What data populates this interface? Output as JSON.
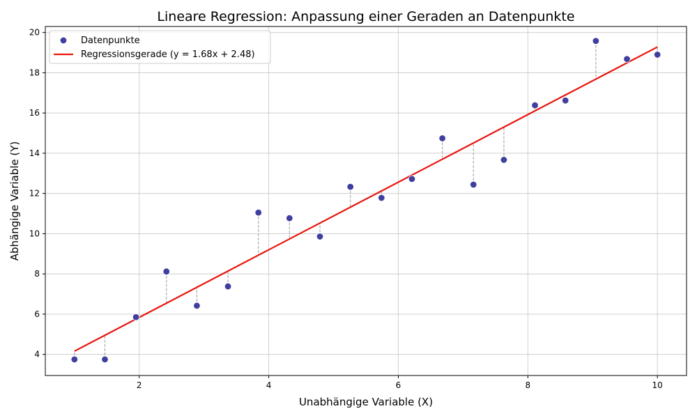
{
  "chart_data": {
    "type": "scatter",
    "title": "Lineare Regression: Anpassung einer Geraden an Datenpunkte",
    "xlabel": "Unabhängige Variable (X)",
    "ylabel": "Abhängige Variable (Y)",
    "xlim": [
      0.55,
      10.45
    ],
    "ylim": [
      2.95,
      20.3
    ],
    "x_ticks": [
      2,
      4,
      6,
      8,
      10
    ],
    "y_ticks": [
      4,
      6,
      8,
      10,
      12,
      14,
      16,
      18,
      20
    ],
    "grid": true,
    "legend_position": "top-left",
    "series": [
      {
        "name": "Datenpunkte",
        "kind": "scatter",
        "color": "#3f3f9f",
        "x": [
          1.0,
          1.47,
          1.95,
          2.42,
          2.89,
          3.37,
          3.84,
          4.32,
          4.79,
          5.26,
          5.74,
          6.21,
          6.68,
          7.16,
          7.63,
          8.11,
          8.58,
          9.05,
          9.53,
          10.0
        ],
        "y": [
          3.75,
          3.75,
          5.85,
          8.12,
          6.42,
          7.38,
          11.05,
          10.77,
          9.86,
          12.33,
          11.78,
          12.72,
          14.74,
          12.44,
          13.67,
          16.38,
          16.62,
          19.58,
          18.68,
          18.9
        ]
      },
      {
        "name": "Regressionsgerade (y = 1.68x + 2.48)",
        "kind": "line",
        "color": "#e8140c",
        "slope": 1.68,
        "intercept": 2.48,
        "x_range": [
          1.0,
          10.0
        ]
      }
    ],
    "residual_lines": true,
    "residual_color": "#aaaaaa"
  }
}
